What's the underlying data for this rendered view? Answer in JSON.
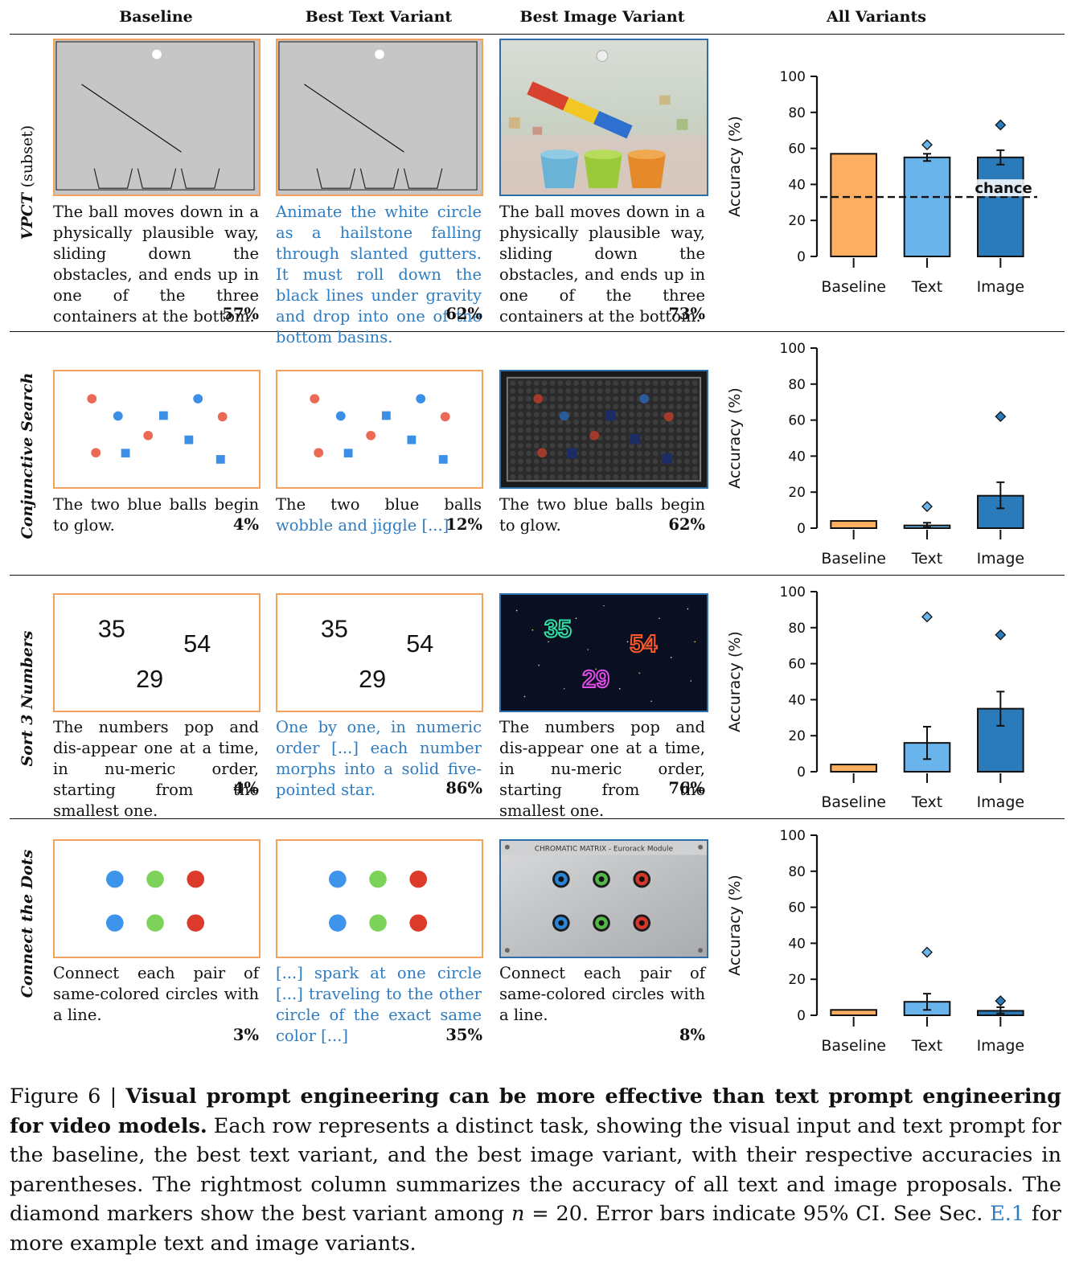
{
  "headers": {
    "baseline": "Baseline",
    "text": "Best Text Variant",
    "image": "Best Image Variant",
    "all": "All Variants"
  },
  "rows": [
    {
      "label_italic": "VPCT",
      "label_rest": "(subset)",
      "baseline_caption": "The ball moves down in a physically plausible way, sliding down the obstacles, and ends up in one of the three containers at the bottom.",
      "baseline_pct": "57%",
      "text_caption": "Animate the white circle as a hailstone falling through slanted gutters. It must roll down the black lines under gravity and drop into one of the bottom basins.",
      "text_pct": "62%",
      "image_caption": "The ball moves down in a physically plausible way, sliding down the obstacles, and ends up in one of the three containers at the bottom.",
      "image_pct": "73%"
    },
    {
      "label_italic": "Conjunctive Search",
      "label_rest": "",
      "baseline_caption": "The two blue balls begin to glow.",
      "baseline_pct": "4%",
      "text_caption_plain": "The two blue balls ",
      "text_caption_blue": "wobble and jiggle [...]",
      "text_pct": "12%",
      "image_caption": "The two blue balls begin to glow.",
      "image_pct": "62%"
    },
    {
      "label_italic": "Sort 3 Numbers",
      "label_rest": "",
      "numbers": [
        "35",
        "54",
        "29"
      ],
      "baseline_caption": "The numbers pop and dis-appear one at a time, in nu-meric order, starting from the smallest one.",
      "baseline_pct": "4%",
      "text_caption": "One by one, in numeric order [...] each number morphs into a solid five-pointed star.",
      "text_pct": "86%",
      "image_caption": "The numbers pop and dis-appear one at a time, in nu-meric order, starting from the smallest one.",
      "image_pct": "76%"
    },
    {
      "label_italic": "Connect the Dots",
      "label_rest": "",
      "image_panel_title": "CHROMATIC MATRIX - Eurorack Module",
      "baseline_caption": "Connect each pair of same-colored circles with a line.",
      "baseline_pct": "3%",
      "text_caption": "[...] spark at one circle [...] traveling to the other circle of the exact same color [...]",
      "text_pct": "35%",
      "image_caption": "Connect each pair of same-colored circles with a line.",
      "image_pct": "8%"
    }
  ],
  "chart_data": [
    {
      "type": "bar",
      "categories": [
        "Baseline",
        "Text",
        "Image"
      ],
      "values": [
        57,
        55,
        55
      ],
      "ci_low": [
        null,
        53,
        51
      ],
      "ci_high": [
        null,
        57,
        59
      ],
      "best_variant": [
        null,
        62,
        73
      ],
      "chance": 33,
      "chance_label": "chance",
      "ylabel": "Accuracy (%)",
      "ylim": [
        0,
        100
      ],
      "yticks": [
        0,
        20,
        40,
        60,
        80,
        100
      ]
    },
    {
      "type": "bar",
      "categories": [
        "Baseline",
        "Text",
        "Image"
      ],
      "values": [
        4,
        1.5,
        18
      ],
      "ci_low": [
        null,
        0.5,
        11
      ],
      "ci_high": [
        null,
        3,
        25.5
      ],
      "best_variant": [
        null,
        12,
        62
      ],
      "ylabel": "Accuracy (%)",
      "ylim": [
        0,
        100
      ],
      "yticks": [
        0,
        20,
        40,
        60,
        80,
        100
      ]
    },
    {
      "type": "bar",
      "categories": [
        "Baseline",
        "Text",
        "Image"
      ],
      "values": [
        4,
        16,
        35
      ],
      "ci_low": [
        null,
        7,
        25.5
      ],
      "ci_high": [
        null,
        25,
        44.5
      ],
      "best_variant": [
        null,
        86,
        76
      ],
      "ylabel": "Accuracy (%)",
      "ylim": [
        0,
        100
      ],
      "yticks": [
        0,
        20,
        40,
        60,
        80,
        100
      ]
    },
    {
      "type": "bar",
      "categories": [
        "Baseline",
        "Text",
        "Image"
      ],
      "values": [
        3,
        7.5,
        2.5
      ],
      "ci_low": [
        null,
        3,
        1
      ],
      "ci_high": [
        null,
        12,
        4.5
      ],
      "best_variant": [
        null,
        35,
        8
      ],
      "ylabel": "Accuracy (%)",
      "ylim": [
        0,
        100
      ],
      "yticks": [
        0,
        20,
        40,
        60,
        80,
        100
      ]
    }
  ],
  "bar_colors": [
    "#fdae61",
    "#6ab4ec",
    "#2b7bba"
  ],
  "caption": {
    "prefix": "Figure 6 | ",
    "bold": "Visual prompt engineering can be more effective than text prompt engineering for video models.",
    "body1": " Each row represents a distinct task, showing the visual input and text prompt for the baseline, the best text variant, and the best image variant, with their respective accuracies in parentheses. The rightmost column summarizes the accuracy of all text and image proposals. The diamond markers show the best variant among ",
    "n_symbol": "n",
    "body2": " = 20. Error bars indicate 95% CI. See Sec. ",
    "ref": "E.1",
    "body3": " for more example text and image variants."
  }
}
